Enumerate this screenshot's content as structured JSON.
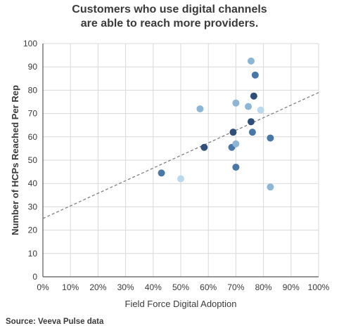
{
  "title_lines": [
    "Customers who use digital channels",
    "are able to reach more providers."
  ],
  "source": "Source: Veeva Pulse data",
  "colors": {
    "dark": "#2f4f78",
    "medium": "#4a78a6",
    "light": "#8db6d6",
    "pale": "#bcd8ec",
    "trendline": "#808080",
    "grid": "#d9d9d9"
  },
  "chart_data": {
    "type": "scatter",
    "title": "Customers who use digital channels are able to reach more providers.",
    "xlabel": "Field Force Digital Adoption",
    "ylabel": "Number of HCPs Reached Per Rep",
    "xlim": [
      0,
      100
    ],
    "ylim": [
      0,
      100
    ],
    "x_ticks": [
      0,
      10,
      20,
      30,
      40,
      50,
      60,
      70,
      80,
      90,
      100
    ],
    "x_tick_labels": [
      "0%",
      "10%",
      "20%",
      "30%",
      "40%",
      "50%",
      "60%",
      "70%",
      "80%",
      "90%",
      "100%"
    ],
    "y_ticks": [
      0,
      10,
      20,
      30,
      40,
      50,
      60,
      70,
      80,
      90,
      100
    ],
    "y_tick_labels": [
      "0",
      "10",
      "20",
      "30",
      "40",
      "50",
      "60",
      "70",
      "80",
      "90",
      "100"
    ],
    "grid": true,
    "legend": "none",
    "points": [
      {
        "x": 43,
        "y": 44.5,
        "shade": "medium"
      },
      {
        "x": 50,
        "y": 42,
        "shade": "pale"
      },
      {
        "x": 57,
        "y": 72,
        "shade": "light"
      },
      {
        "x": 58.5,
        "y": 55.5,
        "shade": "dark"
      },
      {
        "x": 68.5,
        "y": 55.5,
        "shade": "medium"
      },
      {
        "x": 69,
        "y": 62,
        "shade": "dark"
      },
      {
        "x": 70,
        "y": 74.5,
        "shade": "light"
      },
      {
        "x": 70,
        "y": 57,
        "shade": "light"
      },
      {
        "x": 70,
        "y": 47,
        "shade": "medium"
      },
      {
        "x": 74.5,
        "y": 73,
        "shade": "light"
      },
      {
        "x": 75.5,
        "y": 92.5,
        "shade": "light"
      },
      {
        "x": 75.5,
        "y": 66.5,
        "shade": "dark"
      },
      {
        "x": 76,
        "y": 62,
        "shade": "medium"
      },
      {
        "x": 76.5,
        "y": 77.5,
        "shade": "dark"
      },
      {
        "x": 77,
        "y": 86.5,
        "shade": "medium"
      },
      {
        "x": 79,
        "y": 71.5,
        "shade": "pale"
      },
      {
        "x": 82.5,
        "y": 59.5,
        "shade": "medium"
      },
      {
        "x": 82.5,
        "y": 38.5,
        "shade": "light"
      }
    ],
    "trendline": {
      "style": "dashed",
      "x": [
        0,
        100
      ],
      "y": [
        25,
        79
      ]
    }
  }
}
